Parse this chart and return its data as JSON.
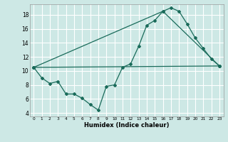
{
  "xlabel": "Humidex (Indice chaleur)",
  "bg_color": "#cde8e5",
  "grid_color": "#ffffff",
  "line_color": "#1a6b5a",
  "xlim": [
    -0.5,
    23.5
  ],
  "ylim": [
    3.5,
    19.5
  ],
  "yticks": [
    4,
    6,
    8,
    10,
    12,
    14,
    16,
    18
  ],
  "xticks": [
    0,
    1,
    2,
    3,
    4,
    5,
    6,
    7,
    8,
    9,
    10,
    11,
    12,
    13,
    14,
    15,
    16,
    17,
    18,
    19,
    20,
    21,
    22,
    23
  ],
  "series1_x": [
    0,
    1,
    2,
    3,
    4,
    5,
    6,
    7,
    8,
    9,
    10,
    11,
    12,
    13,
    14,
    15,
    16,
    17,
    18,
    19,
    20,
    21,
    22,
    23
  ],
  "series1_y": [
    10.5,
    9.0,
    8.2,
    8.5,
    6.7,
    6.7,
    6.1,
    5.2,
    4.4,
    7.8,
    8.0,
    10.5,
    11.0,
    13.5,
    16.5,
    17.2,
    18.5,
    19.0,
    18.5,
    16.7,
    14.7,
    13.2,
    11.7,
    10.7
  ],
  "series2_x": [
    0,
    23
  ],
  "series2_y": [
    10.5,
    10.7
  ],
  "series3_x": [
    0,
    16,
    23
  ],
  "series3_y": [
    10.5,
    18.5,
    10.7
  ]
}
